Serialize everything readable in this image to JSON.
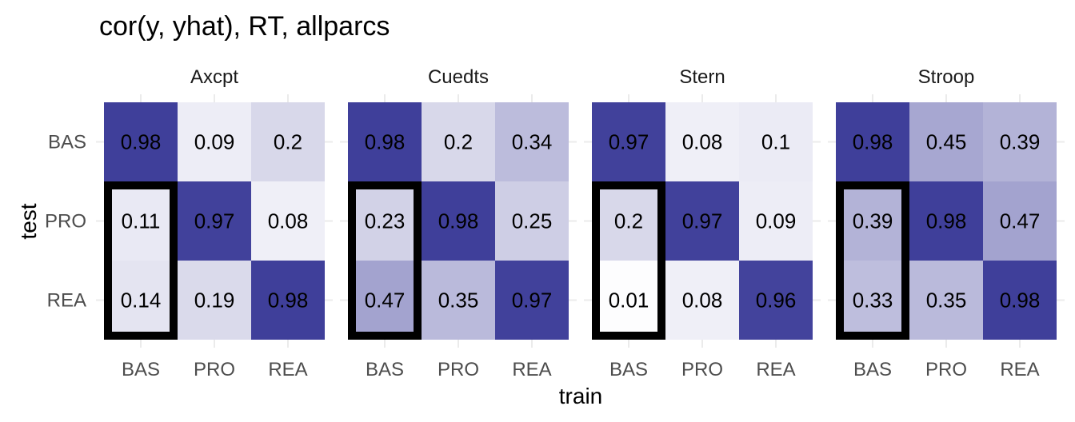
{
  "chart_data": {
    "type": "heatmap",
    "title": "cor(y, yhat), RT, allparcs",
    "xlabel": "train",
    "ylabel": "test",
    "x_categories": [
      "BAS",
      "PRO",
      "REA"
    ],
    "y_categories": [
      "BAS",
      "PRO",
      "REA"
    ],
    "highlight": {
      "train": "BAS",
      "test": [
        "PRO",
        "REA"
      ]
    },
    "color_scale": {
      "low": "#ffffff",
      "high": "#3b3b98",
      "domain": [
        0,
        1
      ]
    },
    "grid": true,
    "legend": "none",
    "facets": [
      {
        "name": "Axcpt",
        "values": [
          [
            0.98,
            0.09,
            0.2
          ],
          [
            0.11,
            0.97,
            0.08
          ],
          [
            0.14,
            0.19,
            0.98
          ]
        ],
        "labels": [
          [
            "0.98",
            "0.09",
            "0.2"
          ],
          [
            "0.11",
            "0.97",
            "0.08"
          ],
          [
            "0.14",
            "0.19",
            "0.98"
          ]
        ]
      },
      {
        "name": "Cuedts",
        "values": [
          [
            0.98,
            0.2,
            0.34
          ],
          [
            0.23,
            0.98,
            0.25
          ],
          [
            0.47,
            0.35,
            0.97
          ]
        ],
        "labels": [
          [
            "0.98",
            "0.2",
            "0.34"
          ],
          [
            "0.23",
            "0.98",
            "0.25"
          ],
          [
            "0.47",
            "0.35",
            "0.97"
          ]
        ]
      },
      {
        "name": "Stern",
        "values": [
          [
            0.97,
            0.08,
            0.1
          ],
          [
            0.2,
            0.97,
            0.09
          ],
          [
            0.01,
            0.08,
            0.96
          ]
        ],
        "labels": [
          [
            "0.97",
            "0.08",
            "0.1"
          ],
          [
            "0.2",
            "0.97",
            "0.09"
          ],
          [
            "0.01",
            "0.08",
            "0.96"
          ]
        ]
      },
      {
        "name": "Stroop",
        "values": [
          [
            0.98,
            0.45,
            0.39
          ],
          [
            0.39,
            0.98,
            0.47
          ],
          [
            0.33,
            0.35,
            0.98
          ]
        ],
        "labels": [
          [
            "0.98",
            "0.45",
            "0.39"
          ],
          [
            "0.39",
            "0.98",
            "0.47"
          ],
          [
            "0.33",
            "0.35",
            "0.98"
          ]
        ]
      }
    ]
  }
}
